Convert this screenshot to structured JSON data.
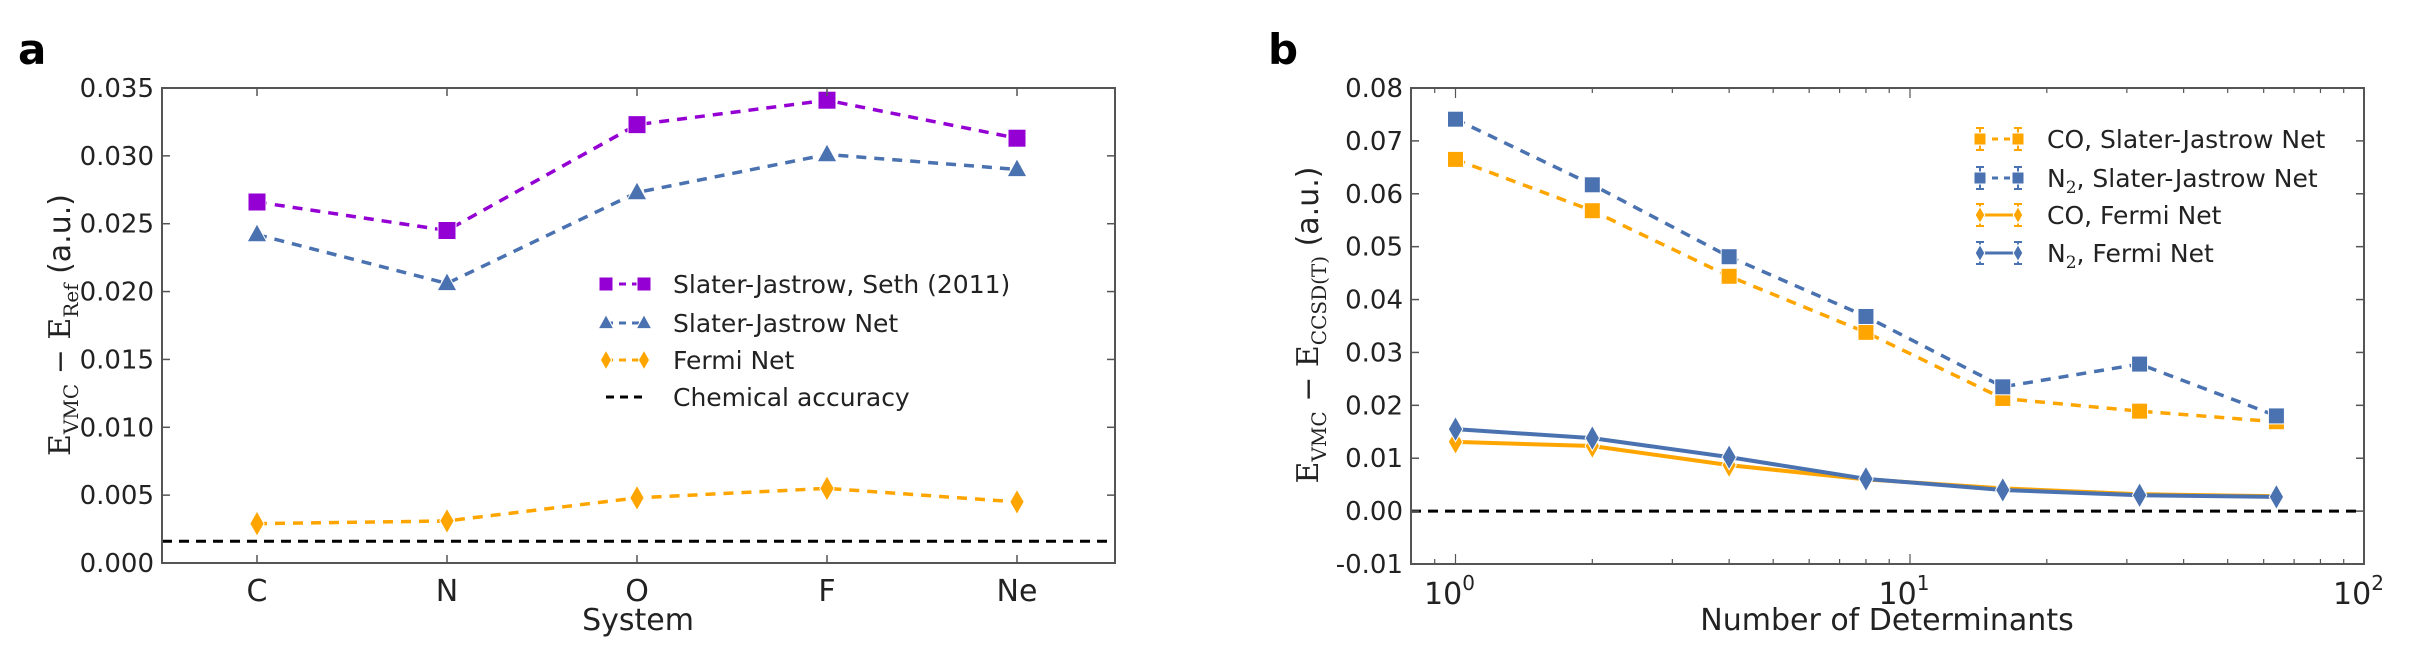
{
  "chart_data": [
    {
      "panel": "a",
      "type": "line",
      "xlabel": "System",
      "ylabel": {
        "main": "E",
        "sub1": "VMC",
        "minus": " − E",
        "sub2": "Ref",
        "unit": " (a.u.)"
      },
      "categories": [
        "C",
        "N",
        "O",
        "F",
        "Ne"
      ],
      "ylim": [
        0.0,
        0.035
      ],
      "yticks": [
        "0.000",
        "0.005",
        "0.010",
        "0.015",
        "0.020",
        "0.025",
        "0.030",
        "0.035"
      ],
      "ytick_values": [
        0.0,
        0.005,
        0.01,
        0.015,
        0.02,
        0.025,
        0.03,
        0.035
      ],
      "legend_position": "center-right",
      "series": [
        {
          "name": "Slater-Jastrow, Seth (2011)",
          "color": "#9400d3",
          "marker": "square",
          "linestyle": "dashed",
          "values": [
            0.0266,
            0.0245,
            0.0323,
            0.0341,
            0.0313
          ]
        },
        {
          "name": "Slater-Jastrow Net",
          "color": "#4a72b0",
          "marker": "triangle",
          "linestyle": "dashed",
          "values": [
            0.0242,
            0.0206,
            0.0273,
            0.0301,
            0.029
          ]
        },
        {
          "name": "Fermi Net",
          "color": "#ffa500",
          "marker": "diamond",
          "linestyle": "dashed",
          "values": [
            0.0029,
            0.0031,
            0.0048,
            0.0055,
            0.0045
          ]
        }
      ],
      "reference_lines": [
        {
          "name": "Chemical accuracy",
          "color": "#000000",
          "linestyle": "dashed",
          "y": 0.0016
        }
      ]
    },
    {
      "panel": "b",
      "type": "line",
      "xlabel": "Number of Determinants",
      "ylabel": {
        "main": "E",
        "sub1": "VMC",
        "minus": " − E",
        "sub2": "CCSD(T)",
        "unit": " (a.u.)"
      },
      "xscale": "log",
      "xlim": [
        0.8,
        100
      ],
      "xticks": [
        {
          "base": "10",
          "exp": "0",
          "value": 1
        },
        {
          "base": "10",
          "exp": "1",
          "value": 10
        },
        {
          "base": "10",
          "exp": "2",
          "value": 100
        }
      ],
      "x": [
        1,
        2,
        4,
        8,
        16,
        32,
        64
      ],
      "ylim": [
        -0.01,
        0.08
      ],
      "yticks": [
        "-0.01",
        "0.00",
        "0.01",
        "0.02",
        "0.03",
        "0.04",
        "0.05",
        "0.06",
        "0.07",
        "0.08"
      ],
      "ytick_values": [
        -0.01,
        0.0,
        0.01,
        0.02,
        0.03,
        0.04,
        0.05,
        0.06,
        0.07,
        0.08
      ],
      "legend_position": "top-right",
      "series": [
        {
          "name": "CO, Slater-Jastrow Net",
          "label_parts": [
            "CO",
            "",
            ", Slater-Jastrow Net"
          ],
          "color": "#ffa500",
          "marker": "square",
          "linestyle": "dashed",
          "values": [
            0.0665,
            0.0568,
            0.0444,
            0.0338,
            0.0213,
            0.0189,
            0.0169
          ]
        },
        {
          "name": "N2, Slater-Jastrow Net",
          "label_parts": [
            "N",
            "2",
            ", Slater-Jastrow Net"
          ],
          "color": "#4a72b0",
          "marker": "square",
          "linestyle": "dashed",
          "values": [
            0.0741,
            0.0617,
            0.0481,
            0.0368,
            0.0235,
            0.0278,
            0.018
          ]
        },
        {
          "name": "CO, Fermi Net",
          "label_parts": [
            "CO",
            "",
            ", Fermi Net"
          ],
          "color": "#ffa500",
          "marker": "diamond",
          "linestyle": "solid",
          "values": [
            0.0131,
            0.0123,
            0.0087,
            0.006,
            0.0043,
            0.0032,
            0.0028
          ]
        },
        {
          "name": "N2, Fermi Net",
          "label_parts": [
            "N",
            "2",
            ", Fermi Net"
          ],
          "color": "#4a72b0",
          "marker": "diamond",
          "linestyle": "solid",
          "values": [
            0.0155,
            0.0138,
            0.0102,
            0.0061,
            0.004,
            0.003,
            0.0027
          ]
        }
      ],
      "reference_lines": [
        {
          "name": "zero",
          "color": "#000000",
          "linestyle": "dashed",
          "y": 0.0
        }
      ]
    }
  ]
}
